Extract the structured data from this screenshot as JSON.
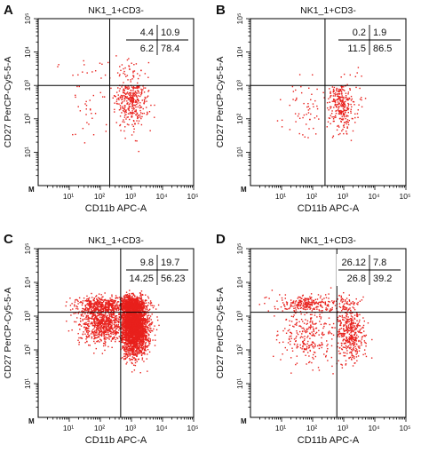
{
  "chart_data": [
    {
      "type": "scatter",
      "panel_label": "A",
      "title": "NK1_1+CD3-",
      "xlabel": "CD11b APC-A",
      "ylabel": "CD27 PerCP-Cy5-5-A",
      "x_scale": "log",
      "y_scale": "log",
      "xlim": [
        1,
        100000
      ],
      "ylim": [
        1,
        100000
      ],
      "x_ticks": [
        "10¹",
        "10²",
        "10³",
        "10⁴",
        "10⁵"
      ],
      "y_ticks": [
        "10¹",
        "10²",
        "10³",
        "10⁴",
        "10⁵"
      ],
      "origin_label": "M",
      "quadrant_gate": {
        "x": 200,
        "y": 1000
      },
      "quadrant_percentages": {
        "upper_left": "4.4",
        "upper_right": "10.9",
        "lower_left": "6.2",
        "lower_right": "78.4"
      },
      "point_color": "#e8201c",
      "populations": [
        {
          "quadrant": "lower_right",
          "center": [
            1000,
            450
          ],
          "spread": [
            0.25,
            0.45
          ],
          "count": 340
        },
        {
          "quadrant": "lower_left",
          "center": [
            40,
            180
          ],
          "spread": [
            0.5,
            0.45
          ],
          "count": 30
        },
        {
          "quadrant": "upper_right",
          "center": [
            800,
            2500
          ],
          "spread": [
            0.35,
            0.2
          ],
          "count": 45
        },
        {
          "quadrant": "upper_left",
          "center": [
            40,
            2500
          ],
          "spread": [
            0.5,
            0.2
          ],
          "count": 15
        }
      ]
    },
    {
      "type": "scatter",
      "panel_label": "B",
      "title": "NK1_1+CD3-",
      "xlabel": "CD11b APC-A",
      "ylabel": "CD27 PerCP-Cy5-5-A",
      "x_scale": "log",
      "y_scale": "log",
      "xlim": [
        1,
        100000
      ],
      "ylim": [
        1,
        100000
      ],
      "x_ticks": [
        "10¹",
        "10²",
        "10³",
        "10⁴",
        "10⁵"
      ],
      "y_ticks": [
        "10¹",
        "10²",
        "10³",
        "10⁴",
        "10⁵"
      ],
      "origin_label": "M",
      "quadrant_gate": {
        "x": 250,
        "y": 1000
      },
      "quadrant_percentages": {
        "upper_left": "0.2",
        "upper_right": "1.9",
        "lower_left": "11.5",
        "lower_right": "86.5"
      },
      "point_color": "#e8201c",
      "populations": [
        {
          "quadrant": "lower_right",
          "center": [
            900,
            300
          ],
          "spread": [
            0.25,
            0.45
          ],
          "count": 290
        },
        {
          "quadrant": "lower_left",
          "center": [
            60,
            200
          ],
          "spread": [
            0.4,
            0.45
          ],
          "count": 55
        },
        {
          "quadrant": "upper_right",
          "center": [
            800,
            1800
          ],
          "spread": [
            0.3,
            0.15
          ],
          "count": 8
        },
        {
          "quadrant": "upper_left",
          "center": [
            80,
            1600
          ],
          "spread": [
            0.3,
            0.1
          ],
          "count": 2
        }
      ]
    },
    {
      "type": "scatter",
      "panel_label": "C",
      "title": "NK1_1+CD3-",
      "xlabel": "CD11b APC-A",
      "ylabel": "CD27 PerCP-Cy5-5-A",
      "x_scale": "log",
      "y_scale": "log",
      "xlim": [
        1,
        100000
      ],
      "ylim": [
        1,
        100000
      ],
      "x_ticks": [
        "10¹",
        "10²",
        "10³",
        "10⁴",
        "10⁵"
      ],
      "y_ticks": [
        "10¹",
        "10²",
        "10³",
        "10⁴",
        "10⁵"
      ],
      "origin_label": "M",
      "quadrant_gate": {
        "x": 450,
        "y": 1300
      },
      "quadrant_percentages": {
        "upper_left": "9.8",
        "upper_right": "19.7",
        "lower_left": "14.25",
        "lower_right": "56.23"
      },
      "point_color": "#e8201c",
      "populations": [
        {
          "quadrant": "lower_right",
          "center": [
            1200,
            500
          ],
          "spread": [
            0.22,
            0.4
          ],
          "count": 2600
        },
        {
          "quadrant": "lower_left",
          "center": [
            120,
            600
          ],
          "spread": [
            0.4,
            0.3
          ],
          "count": 650
        },
        {
          "quadrant": "upper_right",
          "center": [
            1100,
            2000
          ],
          "spread": [
            0.22,
            0.15
          ],
          "count": 900
        },
        {
          "quadrant": "upper_left",
          "center": [
            120,
            2000
          ],
          "spread": [
            0.4,
            0.14
          ],
          "count": 450
        }
      ]
    },
    {
      "type": "scatter",
      "panel_label": "D",
      "title": "NK1_1+CD3-",
      "xlabel": "CD11b APC-A",
      "ylabel": "CD27 PerCP-Cy5-5-A",
      "x_scale": "log",
      "y_scale": "log",
      "xlim": [
        1,
        100000
      ],
      "ylim": [
        1,
        100000
      ],
      "x_ticks": [
        "10¹",
        "10²",
        "10³",
        "10⁴",
        "10⁵"
      ],
      "y_ticks": [
        "10¹",
        "10²",
        "10³",
        "10⁴",
        "10⁵"
      ],
      "origin_label": "M",
      "quadrant_gate": {
        "x": 600,
        "y": 1300
      },
      "quadrant_percentages": {
        "upper_left": "26.12",
        "upper_right": "7.8",
        "lower_left": "26.8",
        "lower_right": "39.2"
      },
      "point_color": "#e8201c",
      "populations": [
        {
          "quadrant": "lower_right",
          "center": [
            1500,
            300
          ],
          "spread": [
            0.25,
            0.4
          ],
          "count": 380
        },
        {
          "quadrant": "lower_left",
          "center": [
            80,
            300
          ],
          "spread": [
            0.5,
            0.45
          ],
          "count": 260
        },
        {
          "quadrant": "upper_right",
          "center": [
            1300,
            2100
          ],
          "spread": [
            0.22,
            0.14
          ],
          "count": 75
        },
        {
          "quadrant": "upper_left",
          "center": [
            80,
            2200
          ],
          "spread": [
            0.5,
            0.14
          ],
          "count": 250
        }
      ]
    }
  ]
}
